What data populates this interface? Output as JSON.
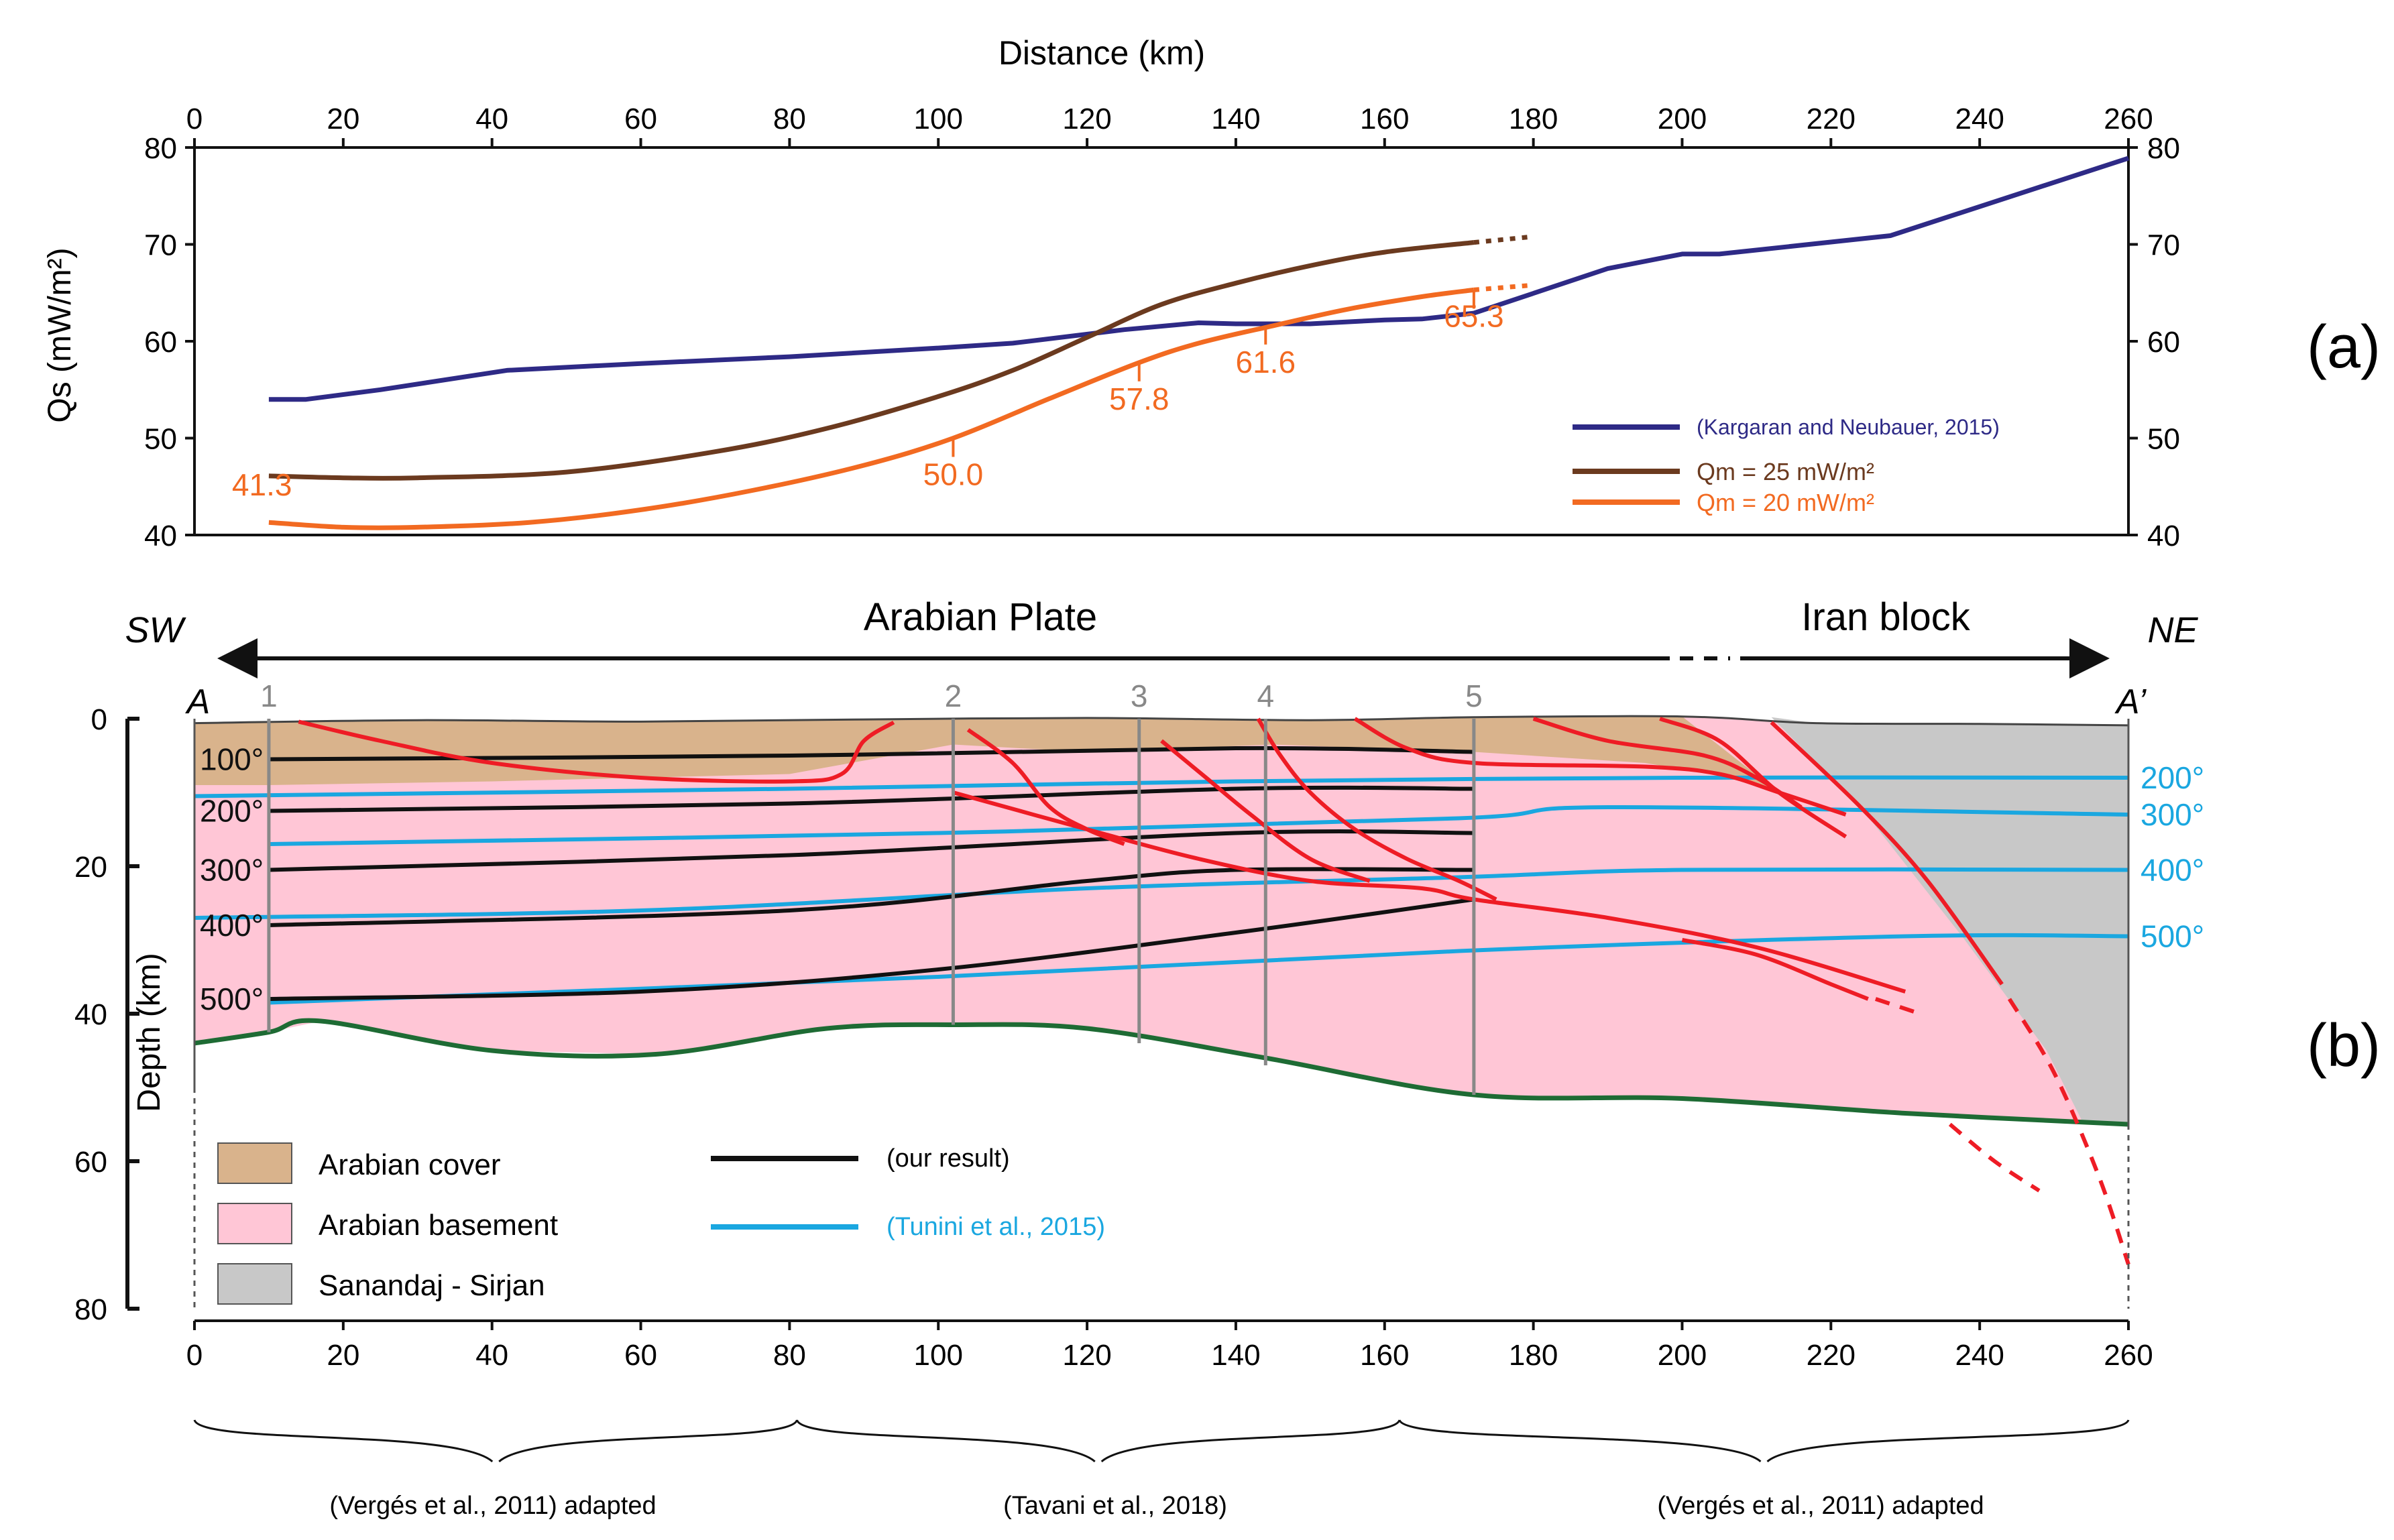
{
  "chart_data": [
    {
      "type": "line",
      "panel_label": "(a)",
      "title": "",
      "xlabel": "Distance (km)",
      "ylabel": "Qs (mW/m²)",
      "xlim": [
        0,
        260
      ],
      "ylim": [
        40,
        80
      ],
      "x_ticks": [
        "0",
        "20",
        "40",
        "60",
        "80",
        "100",
        "120",
        "140",
        "160",
        "180",
        "200",
        "220",
        "240",
        "260"
      ],
      "y_ticks": [
        "40",
        "50",
        "60",
        "70",
        "80"
      ],
      "series": [
        {
          "name": "(Kargaran and Neubauer, 2015)",
          "color": "#2e2a86",
          "x": [
            10,
            15,
            25,
            42,
            60,
            80,
            100,
            110,
            125,
            135,
            140,
            150,
            160,
            165,
            172,
            190,
            200,
            205,
            228,
            260
          ],
          "y": [
            54,
            54,
            55,
            57,
            57.7,
            58.4,
            59.3,
            59.8,
            61.2,
            61.9,
            61.8,
            61.8,
            62.2,
            62.3,
            62.9,
            67.5,
            69,
            69,
            70.9,
            78.9
          ]
        },
        {
          "name": "Qm = 25 mW/m²",
          "color": "#6b3a1f",
          "x": [
            10,
            20,
            30,
            50,
            70,
            85,
            100,
            110,
            120,
            130,
            140,
            150,
            160,
            172
          ],
          "y": [
            46.1,
            45.9,
            45.9,
            46.5,
            48.6,
            51,
            54.3,
            57,
            60.4,
            63.8,
            66,
            67.8,
            69.2,
            70.2
          ],
          "extension_x": [
            172,
            180
          ],
          "extension_y": [
            70.2,
            70.8
          ]
        },
        {
          "name": "Qm = 20 mW/m²",
          "color": "#f26a21",
          "x": [
            10,
            20,
            30,
            45,
            60,
            75,
            90,
            102,
            115,
            127,
            135,
            145,
            155,
            165,
            172
          ],
          "y": [
            41.3,
            40.8,
            40.8,
            41.3,
            42.6,
            44.6,
            47.2,
            50,
            54.1,
            57.8,
            59.8,
            61.6,
            63.3,
            64.6,
            65.3
          ],
          "extension_x": [
            172,
            180
          ],
          "extension_y": [
            65.3,
            65.8
          ]
        }
      ],
      "annotations": [
        {
          "text": "41.3",
          "x": 10,
          "y": 41.3
        },
        {
          "text": "50.0",
          "x": 102,
          "y": 50.0
        },
        {
          "text": "57.8",
          "x": 127,
          "y": 57.8
        },
        {
          "text": "61.6",
          "x": 144,
          "y": 61.6
        },
        {
          "text": "65.3",
          "x": 172,
          "y": 65.3
        }
      ],
      "legend_position": "bottom-right"
    },
    {
      "type": "line",
      "panel_label": "(b)",
      "title": "Arabian Plate / Iran block",
      "xlabel": "",
      "ylabel": "Depth (km)",
      "xlim": [
        0,
        260
      ],
      "ylim": [
        80,
        0
      ],
      "x_ticks": [
        "0",
        "20",
        "40",
        "60",
        "80",
        "100",
        "120",
        "140",
        "160",
        "180",
        "200",
        "220",
        "240",
        "260"
      ],
      "y_ticks": [
        "0",
        "20",
        "40",
        "60",
        "80"
      ],
      "direction_labels": {
        "left": "SW",
        "right": "NE"
      },
      "profile_labels": {
        "start": "A",
        "end": "A’"
      },
      "region_labels": {
        "left": "Arabian Plate",
        "right": "Iran block"
      },
      "wells": [
        {
          "label": "1",
          "x": 10
        },
        {
          "label": "2",
          "x": 102
        },
        {
          "label": "3",
          "x": 127
        },
        {
          "label": "4",
          "x": 144
        },
        {
          "label": "5",
          "x": 172
        }
      ],
      "isotherms_our_result": [
        {
          "label": "100°",
          "x": [
            10,
            172
          ],
          "y": [
            5.5,
            4.5
          ]
        },
        {
          "label": "200°",
          "x": [
            10,
            172
          ],
          "y": [
            12.5,
            9.5
          ]
        },
        {
          "label": "300°",
          "x": [
            10,
            172
          ],
          "y": [
            20.5,
            15.5
          ]
        },
        {
          "label": "400°",
          "x": [
            10,
            172
          ],
          "y": [
            28,
            20.5
          ]
        },
        {
          "label": "500°",
          "x": [
            10,
            172
          ],
          "y": [
            38,
            24.5
          ]
        }
      ],
      "isotherms_tunini": [
        {
          "label": "200°",
          "x": [
            0,
            260
          ],
          "y": [
            10.5,
            8
          ]
        },
        {
          "label": "300°",
          "x": [
            10,
            260
          ],
          "y": [
            17,
            13
          ]
        },
        {
          "label": "400°",
          "x": [
            0,
            260
          ],
          "y": [
            27,
            20.5
          ]
        },
        {
          "label": "500°",
          "x": [
            10,
            260
          ],
          "y": [
            38.5,
            29.5
          ]
        }
      ],
      "legend": [
        {
          "label": "Arabian cover",
          "color": "#d9b38c"
        },
        {
          "label": "Arabian basement",
          "color": "#ffc6d6"
        },
        {
          "label": "Sanandaj - Sirjan",
          "color": "#c8c8c8"
        }
      ],
      "line_legend": [
        {
          "label": "(our result)",
          "color": "#111111"
        },
        {
          "label": "(Tunini et al., 2015)",
          "color": "#1aa7e0"
        }
      ],
      "sources": [
        "(Vergés et al., 2011) adapted",
        "(Tavani et al., 2018)",
        "(Vergés et al., 2011) adapted"
      ]
    }
  ],
  "colors": {
    "kargaran": "#2e2a86",
    "qm25": "#6b3a1f",
    "qm20": "#f26a21",
    "cover": "#d9b38c",
    "basement": "#ffc6d6",
    "sanandaj": "#c8c8c8",
    "moho": "#1e6b34",
    "fault": "#ee1c25",
    "tunini": "#1aa7e0"
  }
}
